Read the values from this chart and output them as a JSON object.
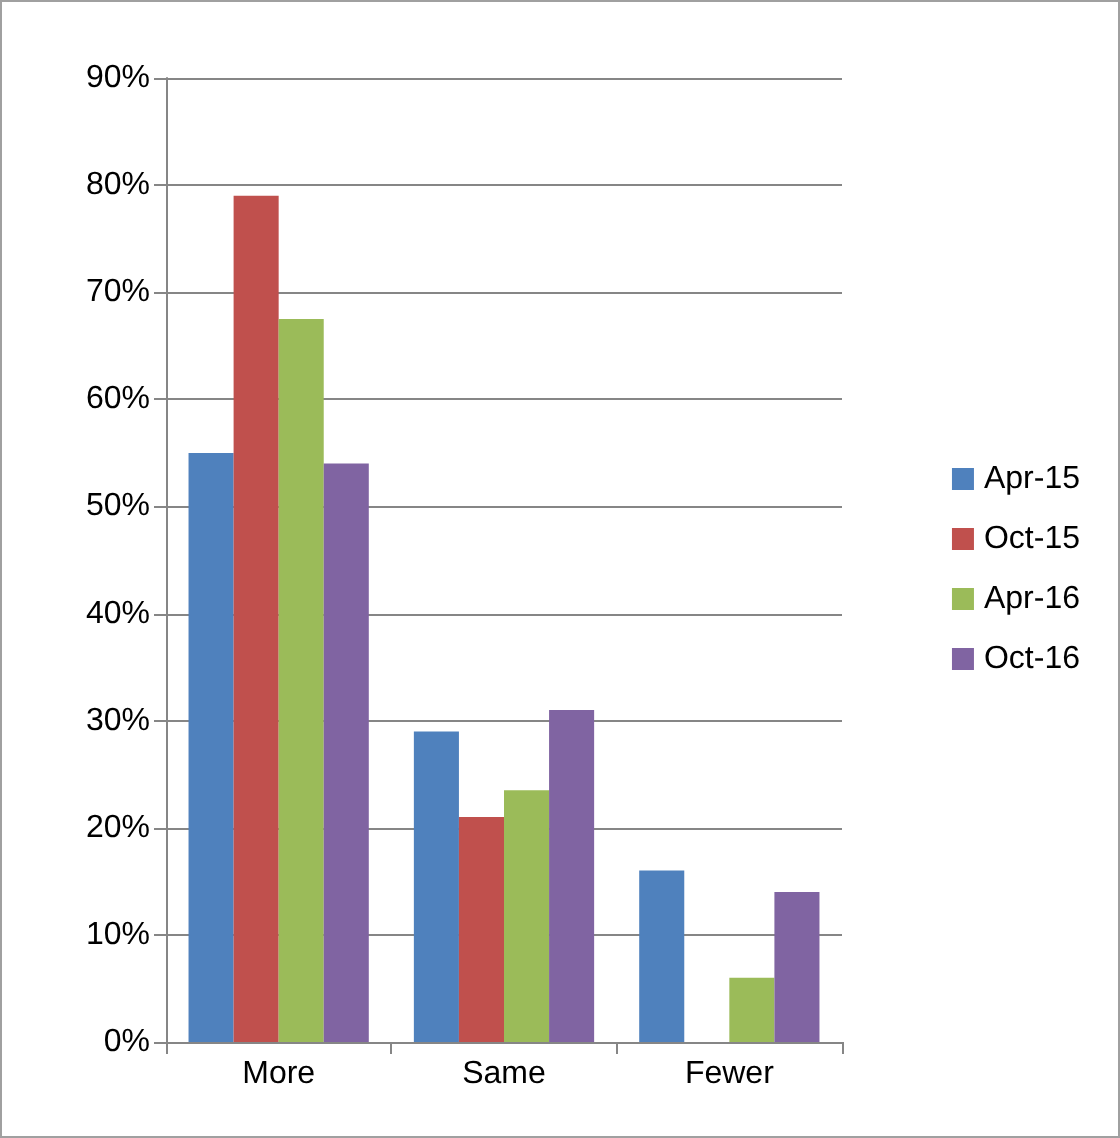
{
  "chart_data": {
    "type": "bar",
    "categories": [
      "More",
      "Same",
      "Fewer"
    ],
    "series": [
      {
        "name": "Apr-15",
        "color": "#4f81bd",
        "values": [
          55,
          29,
          16
        ]
      },
      {
        "name": "Oct-15",
        "color": "#c0504d",
        "values": [
          79,
          21,
          null
        ]
      },
      {
        "name": "Apr-16",
        "color": "#9bbb59",
        "values": [
          67.5,
          23.5,
          6
        ]
      },
      {
        "name": "Oct-16",
        "color": "#8064a2",
        "values": [
          54,
          31,
          14
        ]
      }
    ],
    "ylim": [
      0,
      90
    ],
    "yticks": [
      {
        "value": 0,
        "label": "0%"
      },
      {
        "value": 10,
        "label": "10%"
      },
      {
        "value": 20,
        "label": "20%"
      },
      {
        "value": 30,
        "label": "30%"
      },
      {
        "value": 40,
        "label": "40%"
      },
      {
        "value": 50,
        "label": "50%"
      },
      {
        "value": 60,
        "label": "60%"
      },
      {
        "value": 70,
        "label": "70%"
      },
      {
        "value": 80,
        "label": "80%"
      },
      {
        "value": 90,
        "label": "90%"
      }
    ],
    "grid": "y",
    "legend": "right"
  }
}
